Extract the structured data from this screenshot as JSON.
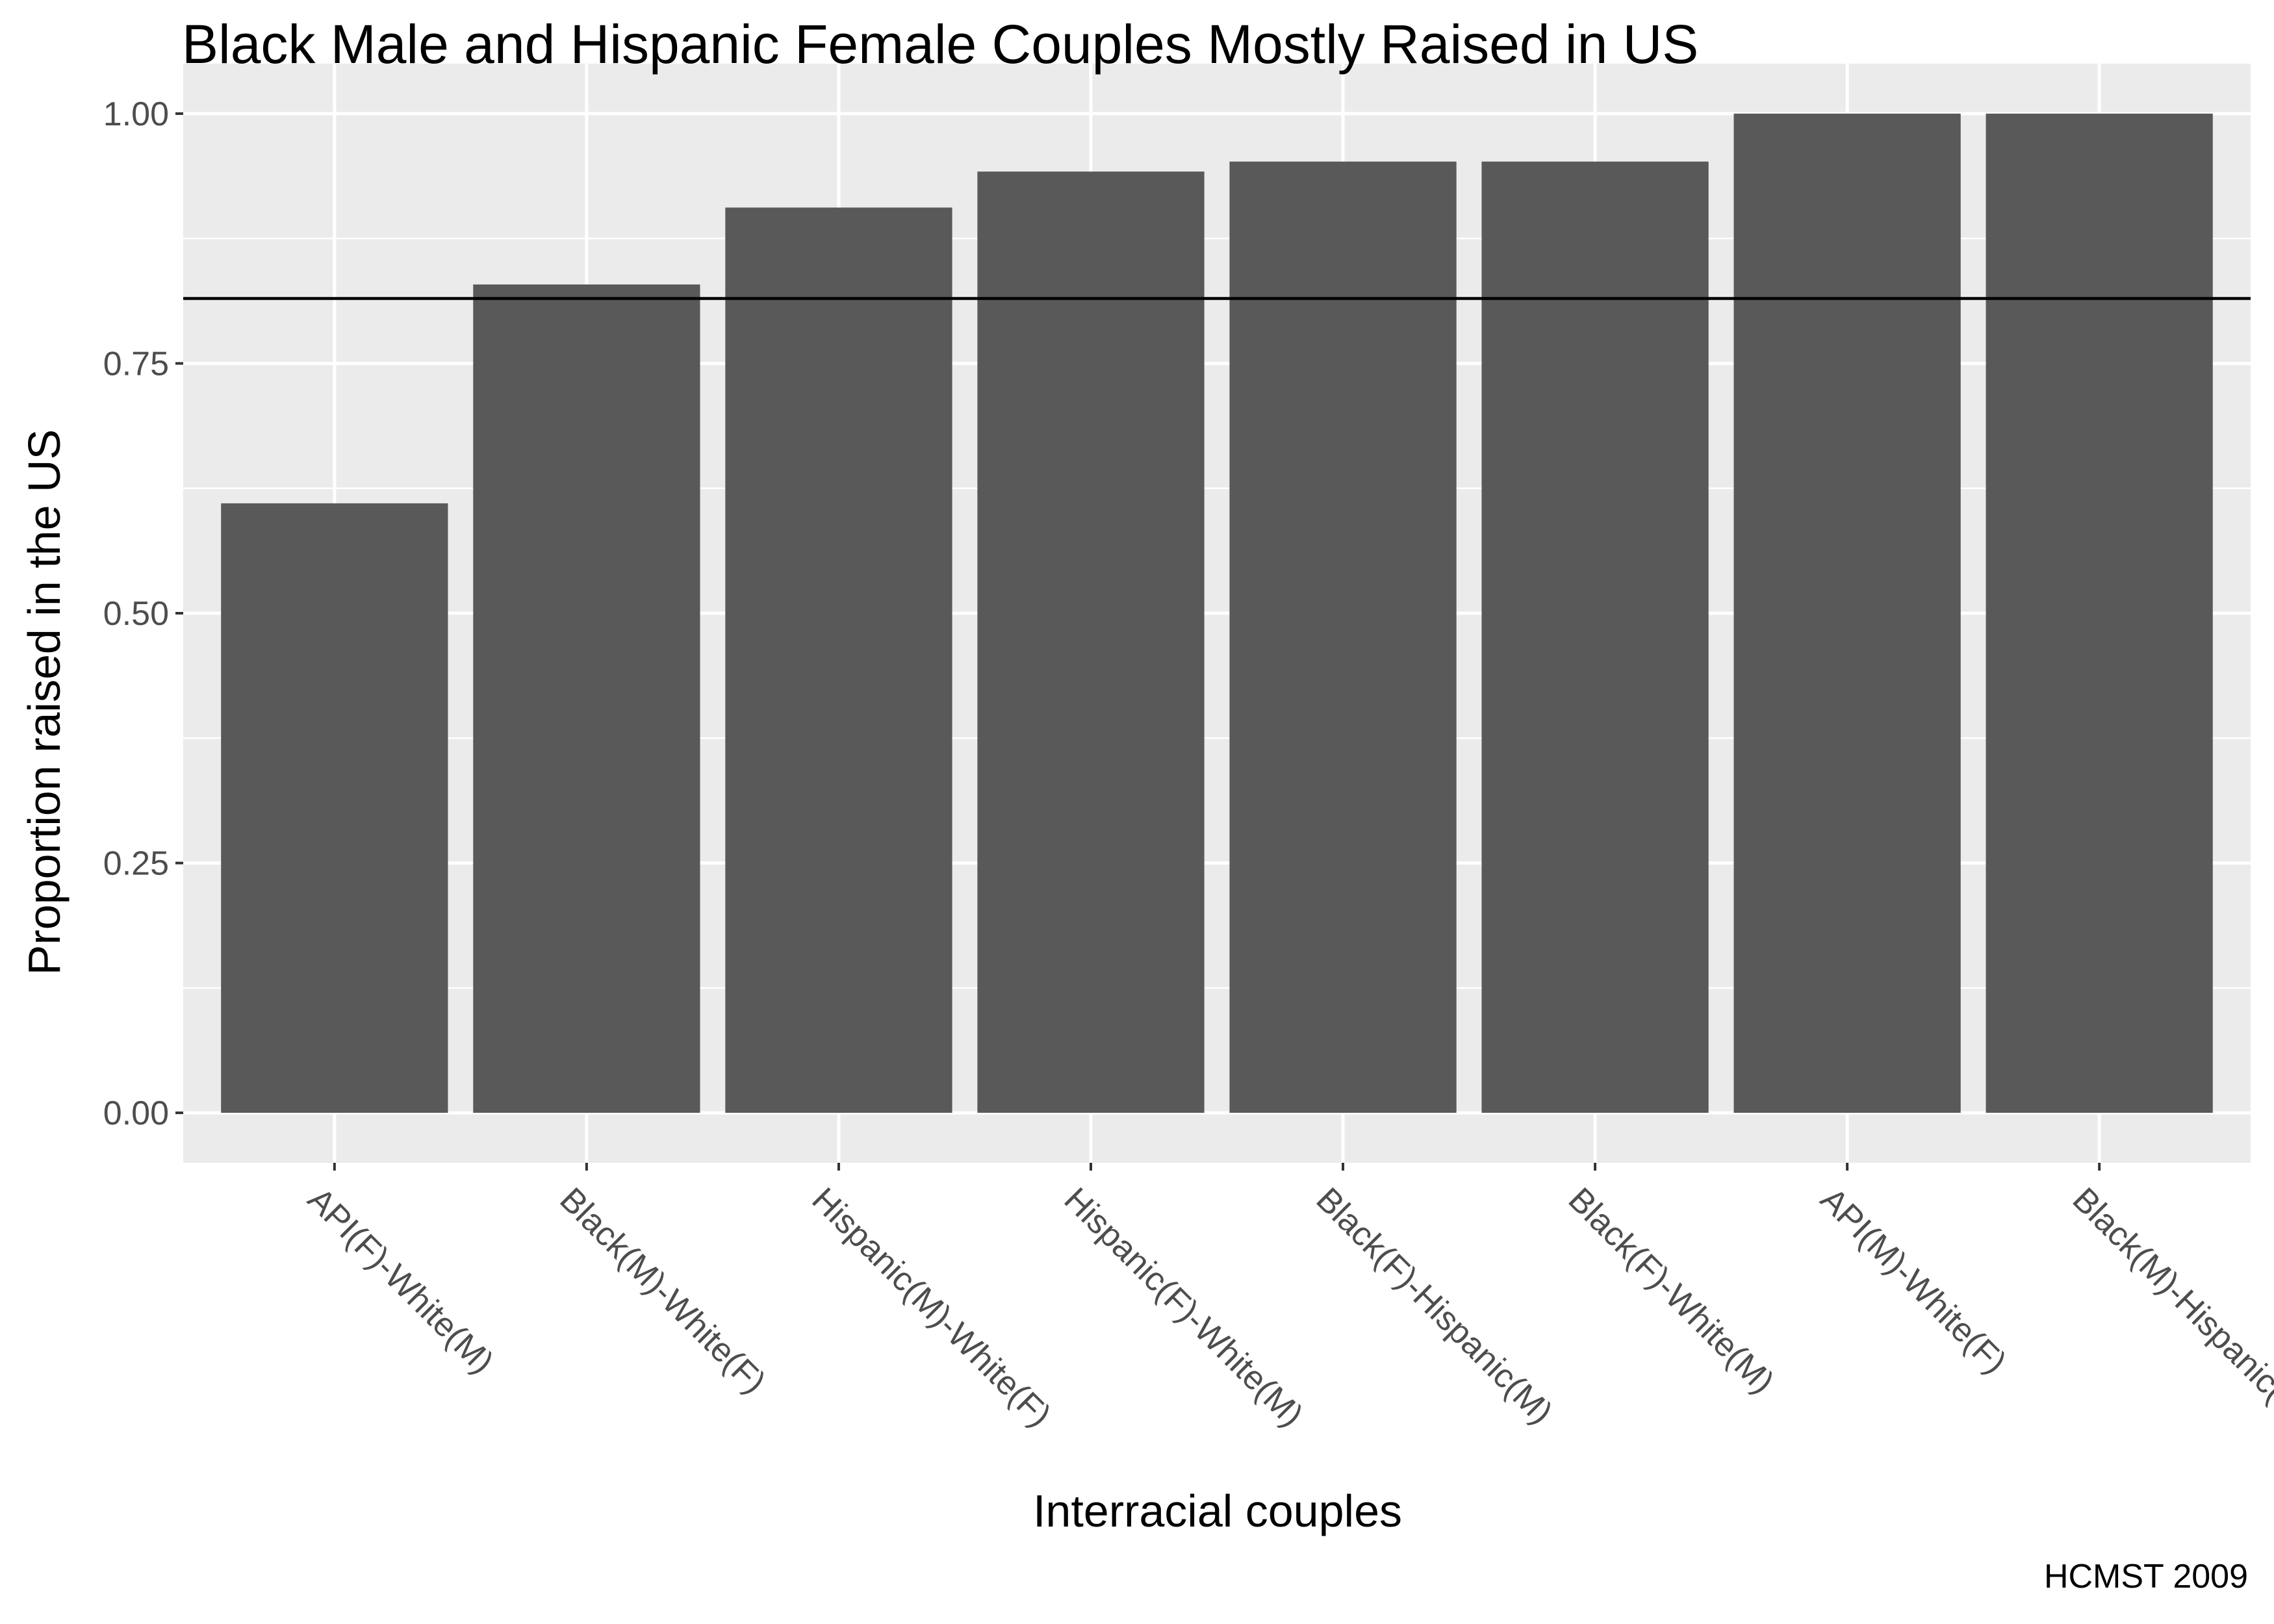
{
  "chart_data": {
    "type": "bar",
    "title": "Black Male and Hispanic Female Couples Mostly Raised in US",
    "xlabel": "Interracial couples",
    "ylabel": "Proportion raised in the US",
    "caption": "HCMST 2009",
    "categories": [
      "API(F)-White(M)",
      "Black(M)-White(F)",
      "Hispanic(M)-White(F)",
      "Hispanic(F)-White(M)",
      "Black(F)-Hispanic(M)",
      "Black(F)-White(M)",
      "API(M)-White(F)",
      "Black(M)-Hispanic(F)"
    ],
    "values": [
      0.61,
      0.829,
      0.906,
      0.942,
      0.952,
      0.952,
      1.0,
      1.0
    ],
    "reference_line": 0.815,
    "ylim": [
      -0.05,
      1.05
    ],
    "yticks": [
      0.0,
      0.25,
      0.5,
      0.75,
      1.0
    ],
    "ytick_labels": [
      "0.00",
      "0.25",
      "0.50",
      "0.75",
      "1.00"
    ],
    "grid": true,
    "colors": {
      "panel": "#EBEBEB",
      "grid": "#FFFFFF",
      "bar": "#595959",
      "reference_line": "#000000",
      "tick_text": "#4D4D4D",
      "tick_mark": "#333333"
    }
  }
}
